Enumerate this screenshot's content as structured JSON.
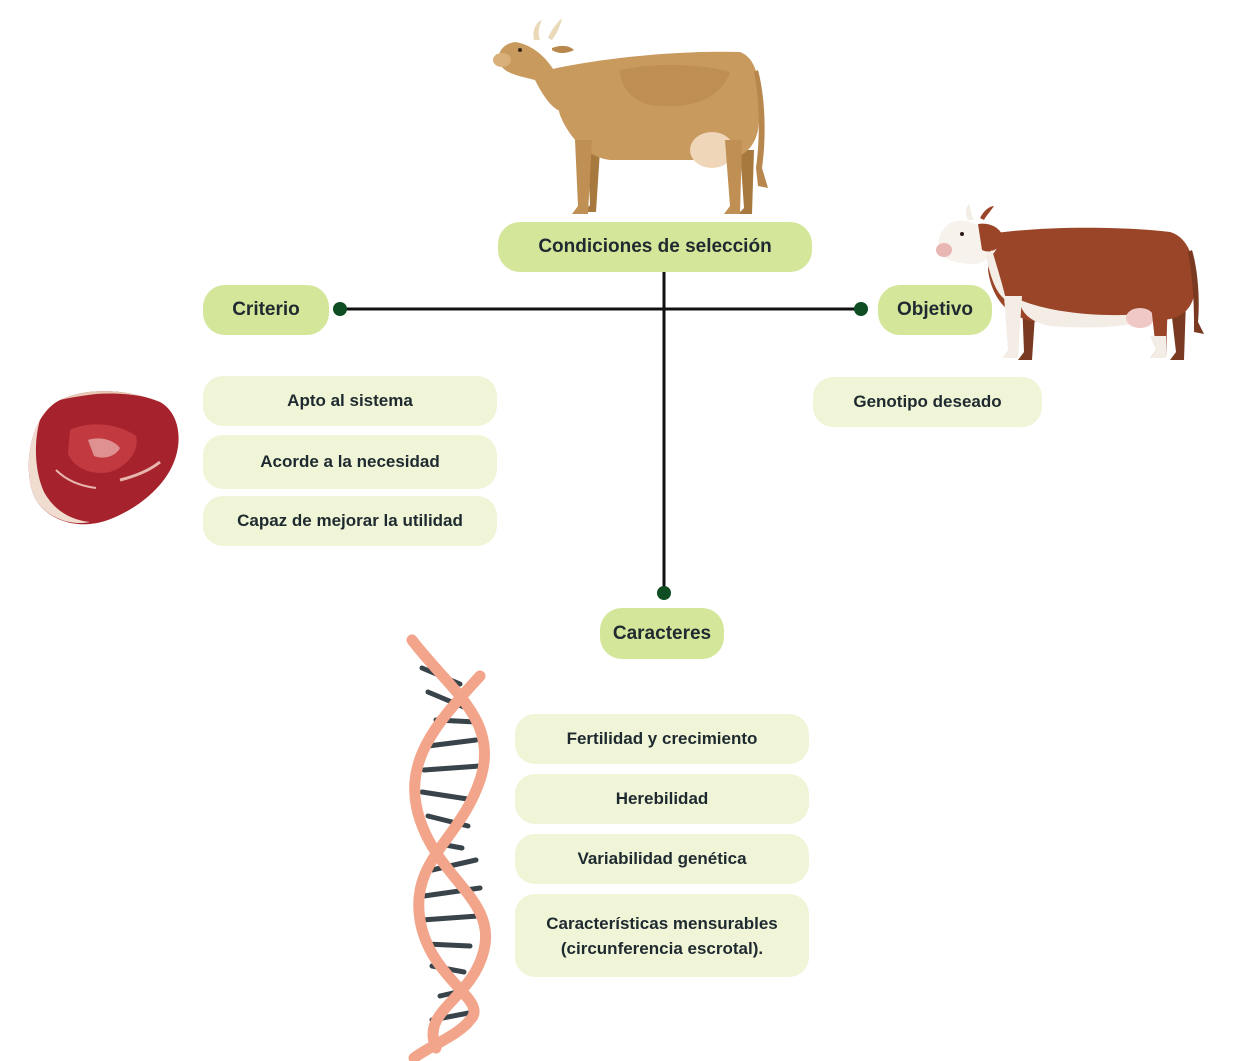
{
  "root": {
    "label": "Condiciones de selección"
  },
  "branches": {
    "criterio": {
      "label": "Criterio",
      "items": [
        "Apto al sistema",
        "Acorde a la necesidad",
        "Capaz de mejorar la utilidad"
      ]
    },
    "objetivo": {
      "label": "Objetivo",
      "items": [
        "Genotipo deseado"
      ]
    },
    "caracteres": {
      "label": "Caracteres",
      "items": [
        "Fertilidad y crecimiento",
        "Herebilidad",
        "Variabilidad genética",
        [
          "Características mensurables",
          "(circunferencia escrotal)."
        ]
      ]
    }
  },
  "illustrations": [
    "cow-tan-icon",
    "hereford-cow-icon",
    "beef-steak-icon",
    "dna-helix-icon"
  ],
  "colors": {
    "main_pill": "#d4e69a",
    "sub_pill": "#eff5d6",
    "connector": "#111111",
    "node_dot": "#0f4d22",
    "text": "#1f2a30"
  }
}
